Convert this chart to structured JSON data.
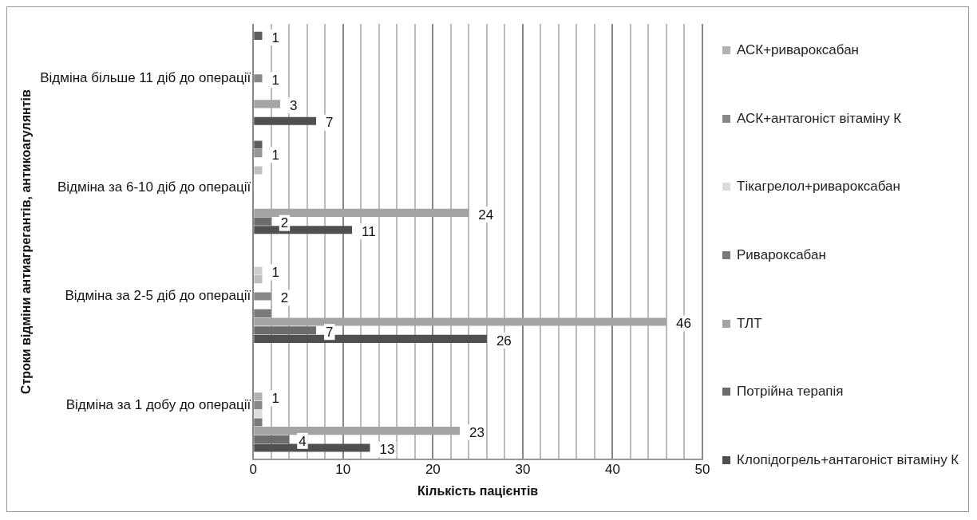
{
  "chart_data": {
    "type": "bar",
    "orientation": "horizontal",
    "xlabel": "Кількість пацієнтів",
    "ylabel": "Строки відміни антиагрегантів, антикоагулянтів",
    "categories": [
      "Відміна більше 11 діб до операції",
      "Відміна за 6-10 діб до операції",
      "Відміна за 2-5 діб до операції",
      "Відміна за 1 добу до операції"
    ],
    "series": [
      {
        "name": "Клопідогрель+антагоніст вітаміну К",
        "color": "#505050",
        "values": [
          7,
          11,
          26,
          13
        ],
        "value_labels": [
          "7",
          "11",
          "26",
          "13"
        ]
      },
      {
        "name": "Потрійна терапія",
        "color": "#6c6c6c",
        "values": [
          null,
          2,
          7,
          4
        ],
        "value_labels": [
          null,
          "2",
          "7",
          "4"
        ]
      },
      {
        "name": "ТЛТ",
        "color": "#a4a4a4",
        "values": [
          3,
          24,
          46,
          23
        ],
        "value_labels": [
          "3",
          "24",
          "46",
          "23"
        ]
      },
      {
        "name": "Ривароксабан",
        "color": "#7a7a7a",
        "values": [
          null,
          null,
          2,
          1
        ],
        "value_labels": [
          null,
          null,
          null,
          null
        ]
      },
      {
        "name": "Тікагрелол+ривароксабан",
        "color": "#dcdcdc",
        "values": [
          null,
          null,
          null,
          1
        ],
        "value_labels": [
          null,
          null,
          null,
          null
        ]
      },
      {
        "name": "АСК+антагоніст вітаміну К",
        "color": "#888888",
        "values": [
          1,
          null,
          2,
          1
        ],
        "value_labels": [
          "1",
          null,
          "2",
          null
        ]
      },
      {
        "name": "АСК+ривароксабан",
        "color": "#b2b2b2",
        "values": [
          null,
          null,
          null,
          1
        ],
        "value_labels": [
          null,
          null,
          null,
          "1"
        ]
      },
      {
        "color": "#c0c0c0",
        "values": [
          null,
          1,
          1,
          null
        ],
        "value_labels": [
          null,
          null,
          null,
          null
        ]
      },
      {
        "color": "#cecece",
        "values": [
          null,
          null,
          1,
          null
        ],
        "value_labels": [
          null,
          null,
          "1",
          null
        ]
      },
      {
        "color": "#969696",
        "values": [
          null,
          1,
          null,
          null
        ],
        "value_labels": [
          null,
          "1",
          null,
          null
        ]
      },
      {
        "color": "#5e5e5e",
        "values": [
          1,
          1,
          null,
          null
        ],
        "value_labels": [
          "1",
          null,
          null,
          null
        ]
      }
    ],
    "xlim": [
      0,
      50
    ],
    "xticks": [
      0,
      {
        "value": 2,
        "label": null
      },
      {
        "value": 4,
        "label": null
      },
      {
        "value": 6,
        "label": null
      },
      {
        "value": 8,
        "label": null
      },
      10,
      {
        "value": 12,
        "label": null
      },
      {
        "value": 14,
        "label": null
      },
      {
        "value": 16,
        "label": null
      },
      {
        "value": 18,
        "label": null
      },
      20,
      {
        "value": 22,
        "label": null
      },
      {
        "value": 24,
        "label": null
      },
      {
        "value": 26,
        "label": null
      },
      {
        "value": 28,
        "label": null
      },
      30,
      {
        "value": 32,
        "label": null
      },
      {
        "value": 34,
        "label": null
      },
      {
        "value": 36,
        "label": null
      },
      {
        "value": 38,
        "label": null
      },
      40,
      {
        "value": 42,
        "label": null
      },
      {
        "value": 44,
        "label": null
      },
      {
        "value": 46,
        "label": null
      },
      {
        "value": 48,
        "label": null
      },
      50
    ],
    "grid": "x",
    "legend": "right"
  }
}
